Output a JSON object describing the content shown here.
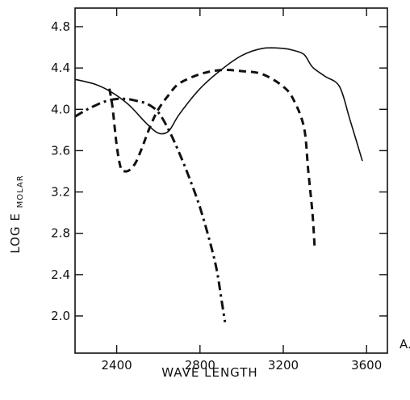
{
  "chart_data": {
    "type": "line",
    "title": "",
    "xlabel": "WAVE LENGTH",
    "ylabel_main": "LOG E",
    "ylabel_sub": "MOLAR",
    "x_unit": "A.",
    "xlim": [
      2200,
      3700
    ],
    "ylim": [
      1.64,
      4.98
    ],
    "x_ticks": [
      2400,
      2800,
      3200,
      3600
    ],
    "y_ticks": [
      2.0,
      2.4,
      2.8,
      3.2,
      3.6,
      4.0,
      4.4,
      4.8
    ],
    "x_tick_labels": [
      "2400",
      "2800",
      "3200",
      "3600"
    ],
    "y_tick_labels": [
      "2.0",
      "2.4",
      "2.8",
      "3.2",
      "3.6",
      "4.0",
      "4.4",
      "4.8"
    ],
    "grid": false,
    "legend": "none",
    "series": [
      {
        "style": "solid",
        "x": [
          2200,
          2300,
          2380,
          2460,
          2540,
          2600,
          2650,
          2700,
          2800,
          2900,
          3000,
          3100,
          3200,
          3250,
          3300,
          3340,
          3400,
          3470,
          3520,
          3580
        ],
        "y": [
          4.29,
          4.24,
          4.16,
          4.04,
          3.87,
          3.77,
          3.79,
          3.95,
          4.2,
          4.38,
          4.52,
          4.59,
          4.59,
          4.57,
          4.53,
          4.41,
          4.32,
          4.22,
          3.9,
          3.5
        ]
      },
      {
        "style": "dashed",
        "x": [
          2365,
          2380,
          2400,
          2420,
          2440,
          2460,
          2490,
          2520,
          2560,
          2600,
          2650,
          2700,
          2800,
          2900,
          3000,
          3100,
          3200,
          3250,
          3300,
          3320,
          3340,
          3350
        ],
        "y": [
          4.2,
          4.02,
          3.65,
          3.43,
          3.4,
          3.41,
          3.48,
          3.62,
          3.83,
          4.0,
          4.14,
          4.25,
          4.34,
          4.38,
          4.37,
          4.34,
          4.22,
          4.09,
          3.82,
          3.4,
          3.0,
          2.68
        ]
      },
      {
        "style": "dashdot",
        "x": [
          2200,
          2250,
          2300,
          2350,
          2400,
          2450,
          2500,
          2550,
          2600,
          2650,
          2700,
          2750,
          2800,
          2850,
          2880,
          2900,
          2920
        ],
        "y": [
          3.93,
          3.99,
          4.04,
          4.08,
          4.1,
          4.1,
          4.08,
          4.05,
          3.97,
          3.8,
          3.58,
          3.33,
          3.05,
          2.7,
          2.45,
          2.2,
          1.94
        ]
      }
    ]
  }
}
